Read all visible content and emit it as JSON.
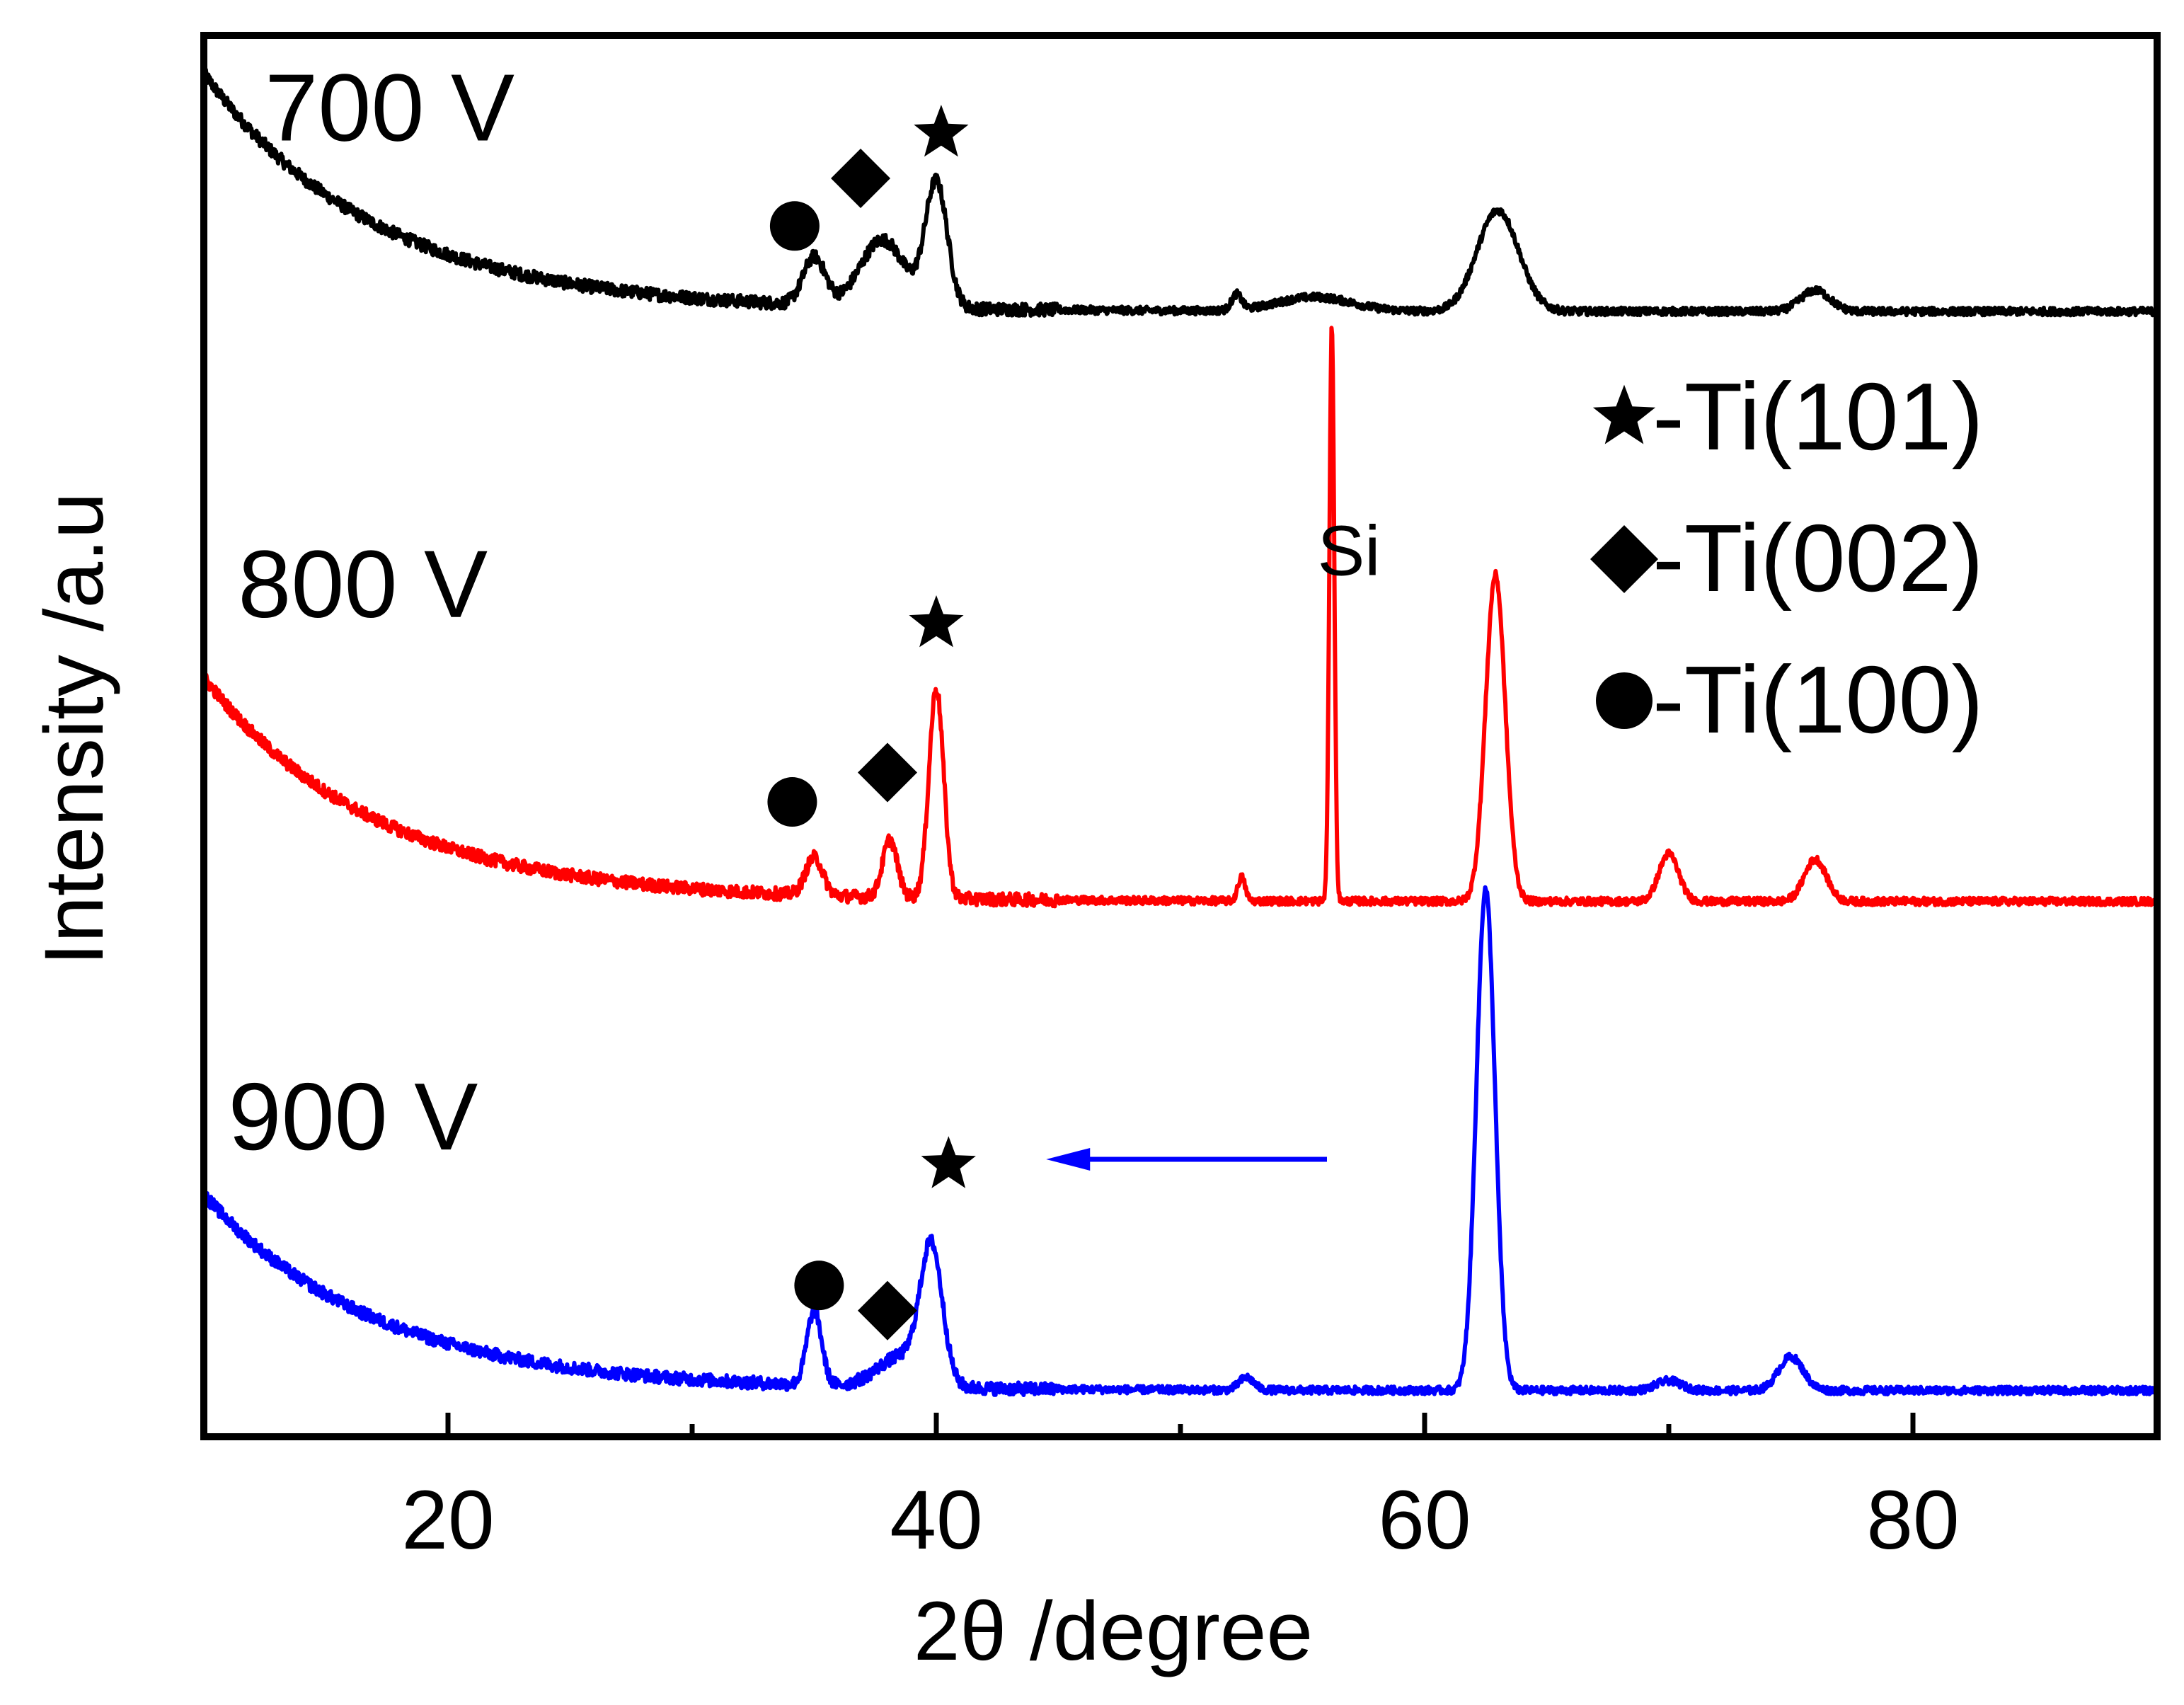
{
  "chart_data": {
    "type": "line",
    "title": "",
    "xlabel": "2θ /degree",
    "ylabel": "Intensity /a.u",
    "xlim": [
      10,
      90
    ],
    "ylim": [
      0,
      100
    ],
    "x_ticks": [
      20,
      40,
      60,
      80
    ],
    "x_minor_ticks": [
      30,
      50,
      70
    ],
    "grid": false,
    "y_ticks_visible": false,
    "series": [
      {
        "name": "700 V",
        "label": "700 V",
        "color": "#000000",
        "baseline": 80.3,
        "background": {
          "amp": 17,
          "decay": 7
        },
        "noise": 0.9,
        "peaks": [
          {
            "center": 35.0,
            "height": 3.4,
            "width": 0.45
          },
          {
            "center": 37.8,
            "height": 4.8,
            "width": 0.9
          },
          {
            "center": 40.0,
            "height": 8.9,
            "width": 0.45
          },
          {
            "center": 52.3,
            "height": 1.1,
            "width": 0.2
          },
          {
            "center": 55.5,
            "height": 1.0,
            "width": 1.5
          },
          {
            "center": 63.0,
            "height": 7.2,
            "width": 0.85
          },
          {
            "center": 76.0,
            "height": 1.5,
            "width": 0.6
          }
        ],
        "markers": [
          {
            "symbol": "circle",
            "x": 34.2,
            "y": 86.4
          },
          {
            "symbol": "diamond",
            "x": 36.9,
            "y": 89.8
          },
          {
            "symbol": "star",
            "x": 40.2,
            "y": 93.0
          }
        ]
      },
      {
        "name": "800 V",
        "label": "800 V",
        "color": "#ff0000",
        "baseline": 38.2,
        "background": {
          "amp": 16,
          "decay": 7
        },
        "noise": 0.9,
        "peaks": [
          {
            "center": 35.0,
            "height": 2.7,
            "width": 0.35
          },
          {
            "center": 38.1,
            "height": 4.1,
            "width": 0.3
          },
          {
            "center": 40.0,
            "height": 15.0,
            "width": 0.3
          },
          {
            "center": 52.5,
            "height": 1.7,
            "width": 0.15
          },
          {
            "center": 56.2,
            "height": 41.0,
            "width": 0.1
          },
          {
            "center": 62.9,
            "height": 23.3,
            "width": 0.4
          },
          {
            "center": 70.0,
            "height": 3.4,
            "width": 0.4
          },
          {
            "center": 76.0,
            "height": 3.0,
            "width": 0.45
          }
        ],
        "markers": [
          {
            "symbol": "circle",
            "x": 34.1,
            "y": 45.3
          },
          {
            "symbol": "diamond",
            "x": 38.0,
            "y": 47.4
          },
          {
            "symbol": "star",
            "x": 40.0,
            "y": 58.0
          }
        ],
        "annotations": [
          {
            "text": "Si",
            "x": 56.9,
            "y": 61.5
          }
        ]
      },
      {
        "name": "900 V",
        "label": "900 V",
        "color": "#0000ff",
        "baseline": 3.3,
        "background": {
          "amp": 14,
          "decay": 7
        },
        "noise": 0.9,
        "peaks": [
          {
            "center": 35.0,
            "height": 5.3,
            "width": 0.3
          },
          {
            "center": 38.6,
            "height": 2.2,
            "width": 1.0
          },
          {
            "center": 39.8,
            "height": 9.4,
            "width": 0.45
          },
          {
            "center": 52.7,
            "height": 0.9,
            "width": 0.3
          },
          {
            "center": 62.5,
            "height": 35.8,
            "width": 0.38
          },
          {
            "center": 70.0,
            "height": 0.7,
            "width": 0.5
          },
          {
            "center": 75.0,
            "height": 2.4,
            "width": 0.5
          }
        ],
        "markers": [
          {
            "symbol": "circle",
            "x": 35.2,
            "y": 10.8
          },
          {
            "symbol": "diamond",
            "x": 38.0,
            "y": 9.0
          },
          {
            "symbol": "star",
            "x": 40.5,
            "y": 19.4
          }
        ],
        "arrows": [
          {
            "from_x": 56.0,
            "to_x": 44.5,
            "y": 19.8,
            "color": "#0000ff"
          }
        ]
      }
    ],
    "legend": {
      "placement": "right",
      "entries": [
        {
          "symbol": "star",
          "text": "-Ti(101)"
        },
        {
          "symbol": "diamond",
          "text": "-Ti(002)"
        },
        {
          "symbol": "circle",
          "text": "-Ti(100)"
        }
      ]
    }
  }
}
